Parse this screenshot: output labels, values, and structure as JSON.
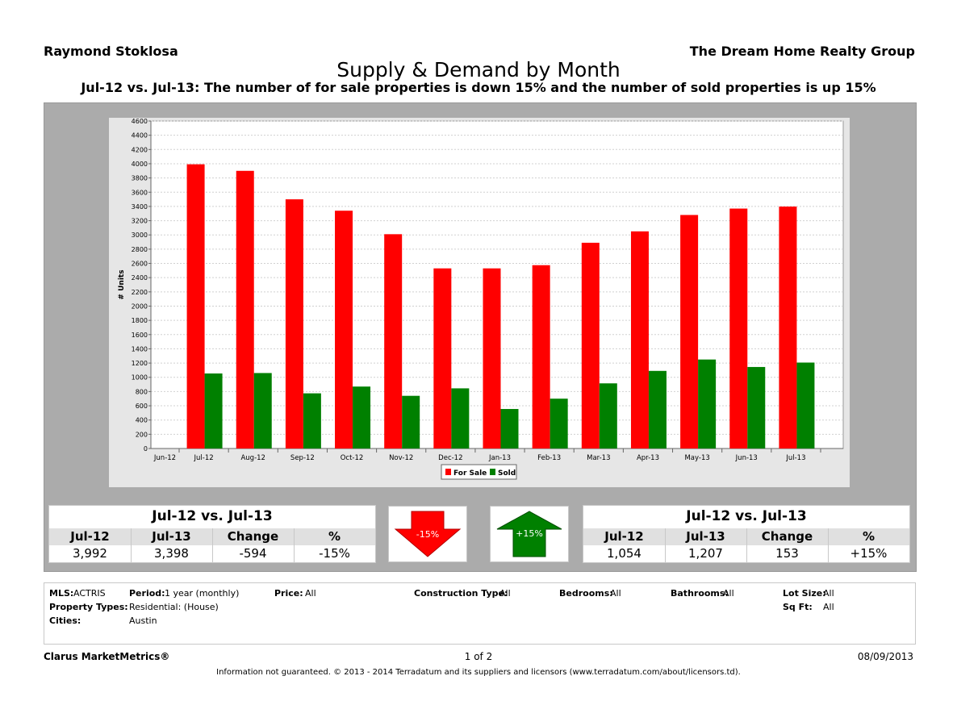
{
  "header": {
    "agent": "Raymond Stoklosa",
    "brokerage": "The Dream Home Realty Group",
    "title": "Supply & Demand by Month",
    "subtitle": "Jul-12 vs. Jul-13:  The number of for sale properties is down 15% and the number of sold properties is up 15%"
  },
  "chart_data": {
    "type": "bar",
    "ylabel": "# Units",
    "xlabel": "",
    "ylim": [
      0,
      4600
    ],
    "y_ticks": [
      0,
      200,
      400,
      600,
      800,
      1000,
      1200,
      1400,
      1600,
      1800,
      2000,
      2200,
      2400,
      2600,
      2800,
      3000,
      3200,
      3400,
      3600,
      3800,
      4000,
      4200,
      4400,
      4600
    ],
    "categories": [
      "Jun-12",
      "Jul-12",
      "Aug-12",
      "Sep-12",
      "Oct-12",
      "Nov-12",
      "Dec-12",
      "Jan-13",
      "Feb-13",
      "Mar-13",
      "Apr-13",
      "May-13",
      "Jun-13",
      "Jul-13"
    ],
    "series": [
      {
        "name": "For Sale",
        "color": "#ff0000",
        "values": [
          null,
          3992,
          3900,
          3500,
          3340,
          3010,
          2530,
          2530,
          2575,
          2890,
          3050,
          3280,
          3370,
          3398
        ]
      },
      {
        "name": "Sold",
        "color": "#008000",
        "values": [
          null,
          1054,
          1060,
          775,
          870,
          740,
          845,
          555,
          700,
          915,
          1090,
          1250,
          1145,
          1207
        ]
      }
    ],
    "legend": "bottom-center",
    "grid": true
  },
  "forsale_stats": {
    "title": "Jul-12 vs. Jul-13",
    "headers": [
      "Jul-12",
      "Jul-13",
      "Change",
      "%"
    ],
    "values": [
      "3,992",
      "3,398",
      "-594",
      "-15%"
    ]
  },
  "forsale_arrow": {
    "label": "-15%",
    "color": "#ff0000",
    "icon": "arrow-down-icon"
  },
  "sold_arrow": {
    "label": "+15%",
    "color": "#008000",
    "icon": "arrow-up-icon"
  },
  "sold_stats": {
    "title": "Jul-12 vs. Jul-13",
    "headers": [
      "Jul-12",
      "Jul-13",
      "Change",
      "%"
    ],
    "values": [
      "1,054",
      "1,207",
      "153",
      "+15%"
    ]
  },
  "filters": {
    "mls_label": "MLS:",
    "mls_value": "ACTRIS",
    "period_label": "Period:",
    "period_value": "1 year (monthly)",
    "price_label": "Price:",
    "price_value": "All",
    "construction_label": "Construction Type:",
    "construction_value": "All",
    "bedrooms_label": "Bedrooms:",
    "bedrooms_value": "All",
    "bathrooms_label": "Bathrooms:",
    "bathrooms_value": "All",
    "lotsize_label": "Lot Size:",
    "lotsize_value": "All",
    "proptypes_label": "Property Types:",
    "proptypes_value": "Residential: (House)",
    "sqft_label": "Sq Ft:",
    "sqft_value": "All",
    "cities_label": "Cities:",
    "cities_value": "Austin"
  },
  "footer": {
    "brand": "Clarus MarketMetrics®",
    "page": "1 of 2",
    "date": "08/09/2013",
    "disclaimer": "Information not guaranteed.  © 2013 - 2014 Terradatum and its suppliers and licensors (www.terradatum.com/about/licensors.td)."
  }
}
